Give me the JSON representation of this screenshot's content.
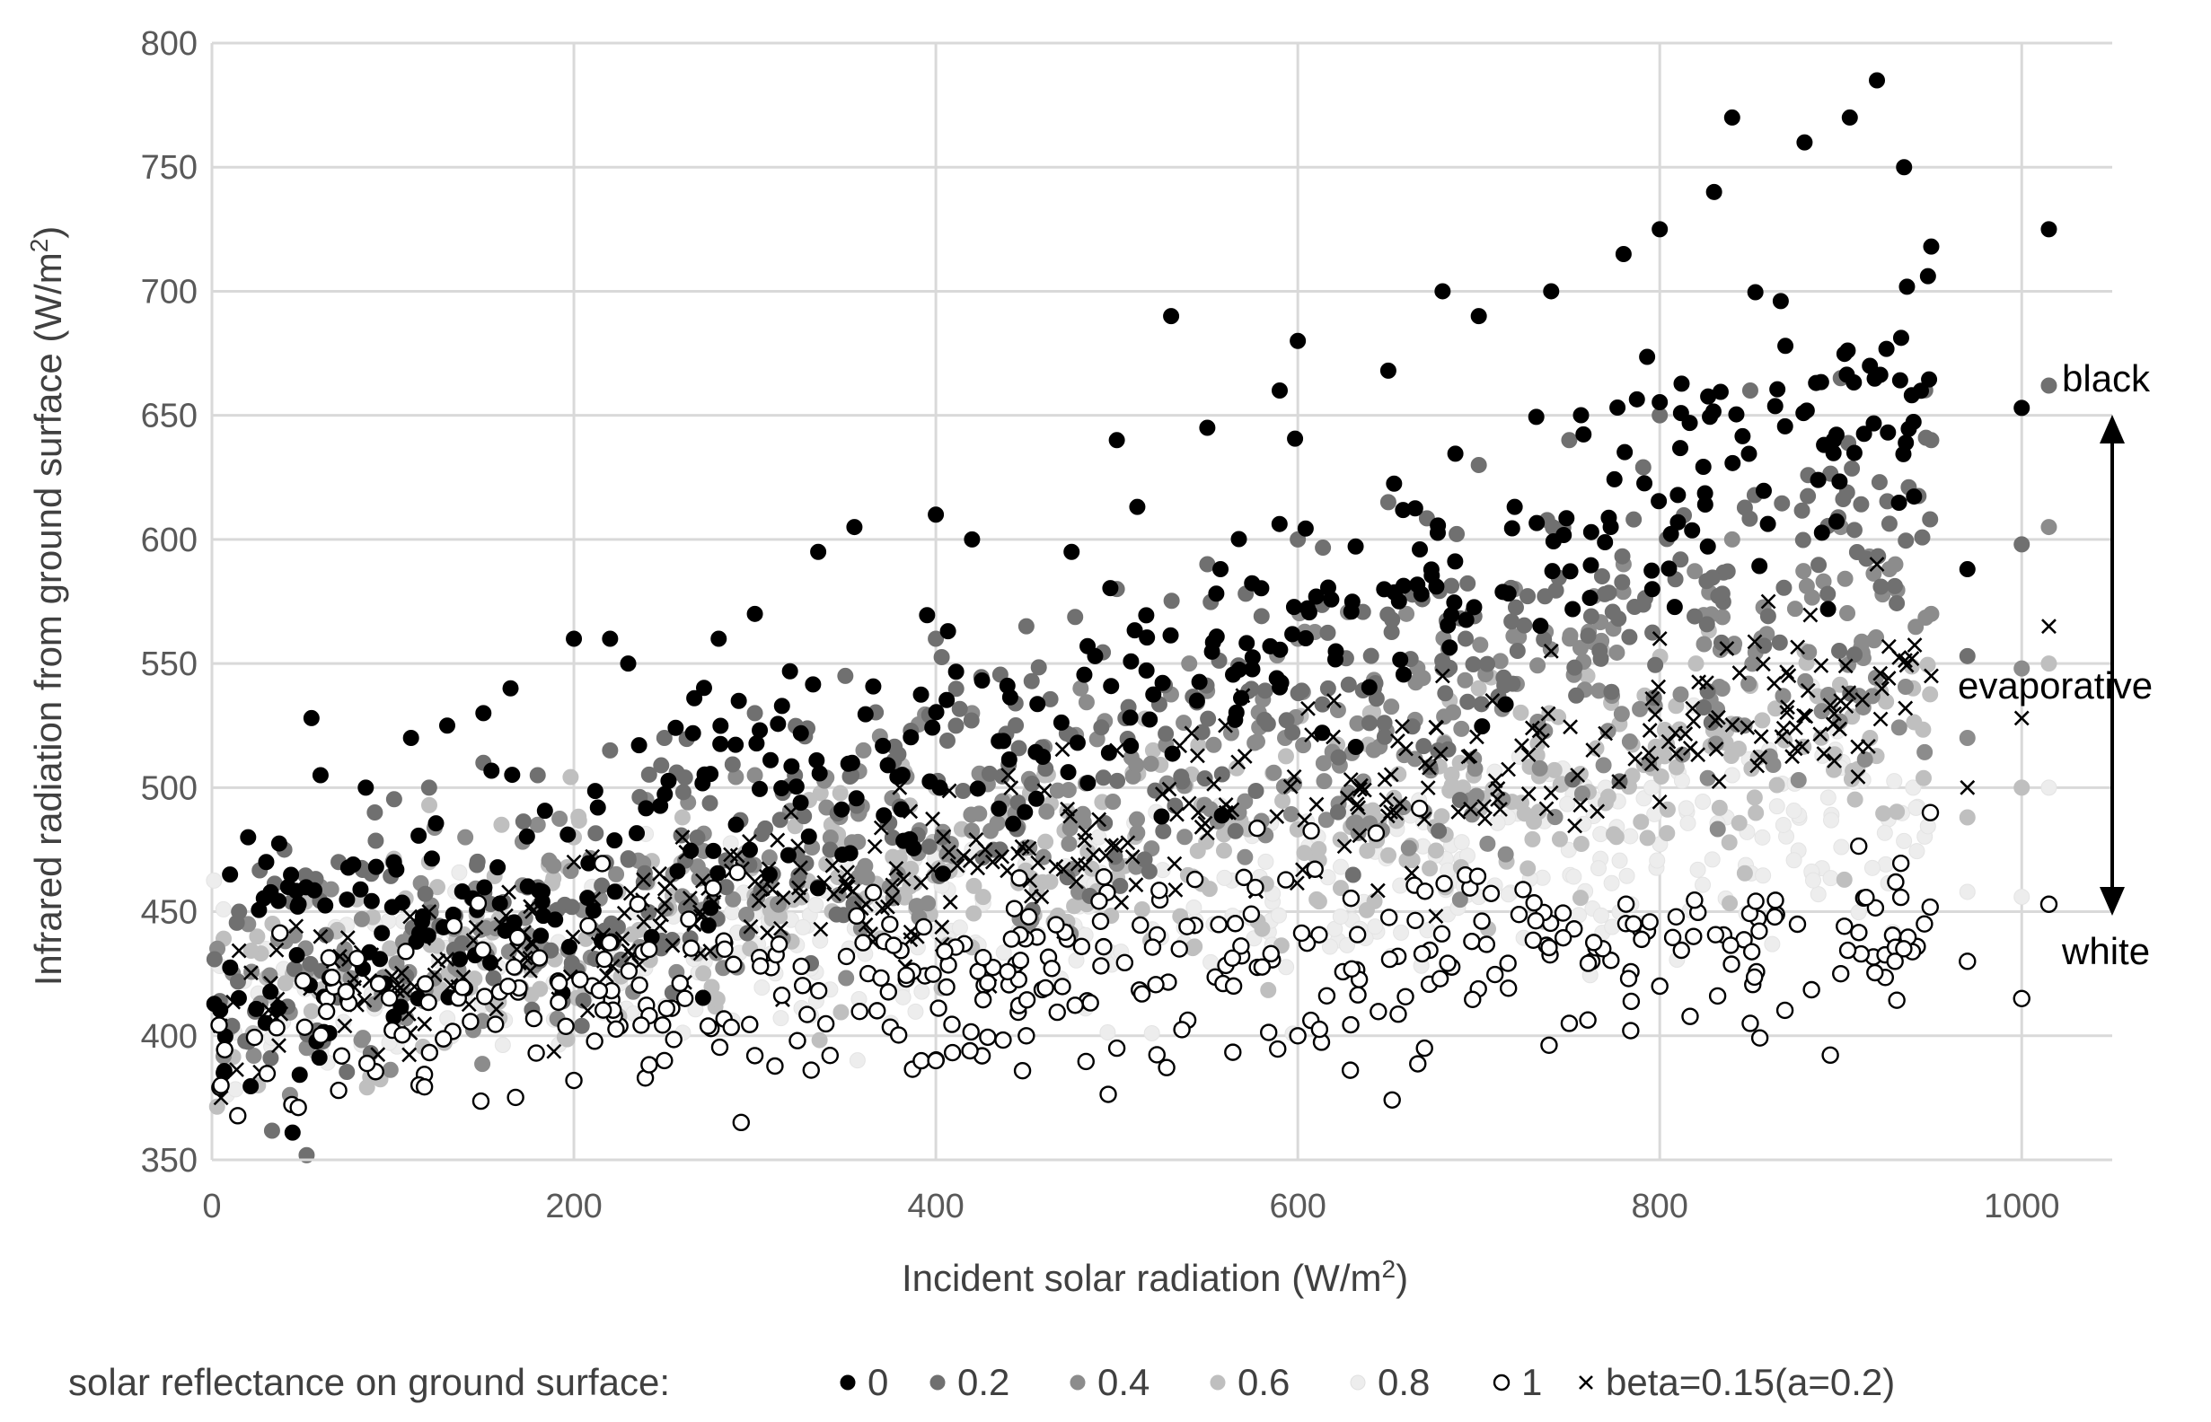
{
  "chart_data": {
    "type": "scatter",
    "title": "",
    "xlabel": "Incident solar radiation (W/m",
    "xlabel_sup": "2",
    "xlabel_end": ")",
    "ylabel": "Infrared radiation from ground surface (W/m",
    "ylabel_sup": "2",
    "ylabel_end": ")",
    "xlim": [
      0,
      1050
    ],
    "ylim": [
      350,
      800
    ],
    "x_ticks": [
      0,
      200,
      400,
      600,
      800,
      1000
    ],
    "y_ticks": [
      350,
      400,
      450,
      500,
      550,
      600,
      650,
      700,
      750,
      800
    ],
    "grid": true,
    "legend_position": "bottom",
    "legend_title": "solar reflectance on ground surface:",
    "annotations": [
      {
        "text": "black",
        "x": 1038,
        "y": 662
      },
      {
        "text": "evaporative",
        "x": 1038,
        "y": 538
      },
      {
        "text": "white",
        "x": 1038,
        "y": 437
      }
    ],
    "arrow": {
      "x": 1050,
      "y_top": 650,
      "y_bottom": 450
    },
    "series": [
      {
        "name": "0",
        "marker": "filled",
        "color": "#000000",
        "approx_trend": {
          "base_at_0": 418,
          "slope_per_1000": 245,
          "spread": 28
        },
        "points": [
          [
            10,
            465
          ],
          [
            20,
            480
          ],
          [
            30,
            470
          ],
          [
            55,
            528
          ],
          [
            60,
            505
          ],
          [
            85,
            500
          ],
          [
            110,
            520
          ],
          [
            130,
            525
          ],
          [
            150,
            530
          ],
          [
            165,
            540
          ],
          [
            200,
            560
          ],
          [
            220,
            560
          ],
          [
            230,
            550
          ],
          [
            280,
            560
          ],
          [
            300,
            570
          ],
          [
            335,
            595
          ],
          [
            355,
            605
          ],
          [
            400,
            610
          ],
          [
            420,
            600
          ],
          [
            475,
            595
          ],
          [
            500,
            640
          ],
          [
            530,
            690
          ],
          [
            550,
            645
          ],
          [
            590,
            660
          ],
          [
            600,
            680
          ],
          [
            650,
            668
          ],
          [
            680,
            700
          ],
          [
            700,
            690
          ],
          [
            740,
            700
          ],
          [
            780,
            715
          ],
          [
            800,
            725
          ],
          [
            830,
            740
          ],
          [
            840,
            770
          ],
          [
            880,
            760
          ],
          [
            905,
            770
          ],
          [
            920,
            785
          ],
          [
            935,
            750
          ],
          [
            950,
            718
          ],
          [
            1000,
            653
          ],
          [
            1015,
            725
          ],
          [
            970,
            588
          ]
        ]
      },
      {
        "name": "0.2",
        "marker": "filled",
        "color": "#707070",
        "approx_trend": {
          "base_at_0": 415,
          "slope_per_1000": 200,
          "spread": 26
        },
        "points": [
          [
            15,
            450
          ],
          [
            40,
            475
          ],
          [
            70,
            470
          ],
          [
            90,
            490
          ],
          [
            120,
            500
          ],
          [
            150,
            510
          ],
          [
            180,
            505
          ],
          [
            220,
            515
          ],
          [
            250,
            520
          ],
          [
            300,
            530
          ],
          [
            350,
            545
          ],
          [
            400,
            560
          ],
          [
            450,
            565
          ],
          [
            500,
            580
          ],
          [
            550,
            590
          ],
          [
            600,
            600
          ],
          [
            650,
            615
          ],
          [
            700,
            630
          ],
          [
            750,
            640
          ],
          [
            800,
            650
          ],
          [
            850,
            660
          ],
          [
            900,
            665
          ],
          [
            950,
            640
          ],
          [
            970,
            553
          ],
          [
            1000,
            598
          ],
          [
            1015,
            662
          ]
        ]
      },
      {
        "name": "0.4",
        "marker": "filled",
        "color": "#8c8c8c",
        "approx_trend": {
          "base_at_0": 413,
          "slope_per_1000": 160,
          "spread": 24
        },
        "points": [
          [
            20,
            445
          ],
          [
            60,
            460
          ],
          [
            100,
            470
          ],
          [
            140,
            480
          ],
          [
            180,
            485
          ],
          [
            240,
            495
          ],
          [
            300,
            505
          ],
          [
            360,
            515
          ],
          [
            420,
            530
          ],
          [
            480,
            540
          ],
          [
            540,
            550
          ],
          [
            600,
            560
          ],
          [
            660,
            570
          ],
          [
            720,
            580
          ],
          [
            780,
            590
          ],
          [
            840,
            600
          ],
          [
            900,
            605
          ],
          [
            950,
            570
          ],
          [
            970,
            520
          ],
          [
            1000,
            548
          ],
          [
            1015,
            605
          ]
        ]
      },
      {
        "name": "0.6",
        "marker": "filled",
        "color": "#bfbfbf",
        "approx_trend": {
          "base_at_0": 411,
          "slope_per_1000": 120,
          "spread": 22
        },
        "points": [
          [
            25,
            440
          ],
          [
            80,
            455
          ],
          [
            120,
            470
          ],
          [
            160,
            485
          ],
          [
            200,
            480
          ],
          [
            260,
            488
          ],
          [
            330,
            495
          ],
          [
            400,
            500
          ],
          [
            460,
            505
          ],
          [
            520,
            515
          ],
          [
            580,
            525
          ],
          [
            640,
            530
          ],
          [
            700,
            540
          ],
          [
            760,
            545
          ],
          [
            820,
            550
          ],
          [
            880,
            555
          ],
          [
            940,
            540
          ],
          [
            970,
            488
          ],
          [
            1000,
            500
          ],
          [
            1015,
            550
          ]
        ]
      },
      {
        "name": "0.8",
        "marker": "filled",
        "color": "#ededed",
        "approx_trend": {
          "base_at_0": 408,
          "slope_per_1000": 85,
          "spread": 20
        },
        "points": [
          [
            30,
            435
          ],
          [
            90,
            445
          ],
          [
            150,
            455
          ],
          [
            210,
            460
          ],
          [
            280,
            465
          ],
          [
            350,
            470
          ],
          [
            420,
            475
          ],
          [
            490,
            480
          ],
          [
            560,
            485
          ],
          [
            630,
            490
          ],
          [
            700,
            495
          ],
          [
            770,
            500
          ],
          [
            840,
            505
          ],
          [
            900,
            508
          ],
          [
            940,
            500
          ],
          [
            970,
            458
          ],
          [
            1000,
            456
          ],
          [
            1015,
            500
          ]
        ]
      },
      {
        "name": "1",
        "marker": "open",
        "color": "#000000",
        "approx_trend": {
          "base_at_0": 405,
          "slope_per_1000": 45,
          "spread": 20
        },
        "points": [
          [
            5,
            380
          ],
          [
            70,
            378
          ],
          [
            200,
            382
          ],
          [
            250,
            390
          ],
          [
            300,
            392
          ],
          [
            400,
            390
          ],
          [
            450,
            400
          ],
          [
            500,
            395
          ],
          [
            600,
            400
          ],
          [
            670,
            395
          ],
          [
            750,
            405
          ],
          [
            800,
            420
          ],
          [
            850,
            405
          ],
          [
            900,
            425
          ],
          [
            930,
            430
          ],
          [
            970,
            430
          ],
          [
            1000,
            415
          ],
          [
            1015,
            453
          ]
        ]
      },
      {
        "name": "beta=0.15(a=0.2)",
        "marker": "x",
        "color": "#000000",
        "approx_trend": {
          "base_at_0": 410,
          "slope_per_1000": 135,
          "spread": 16
        },
        "points": [
          [
            5,
            375
          ],
          [
            60,
            440
          ],
          [
            120,
            450
          ],
          [
            200,
            470
          ],
          [
            260,
            480
          ],
          [
            320,
            490
          ],
          [
            380,
            500
          ],
          [
            440,
            505
          ],
          [
            500,
            515
          ],
          [
            560,
            525
          ],
          [
            620,
            535
          ],
          [
            680,
            545
          ],
          [
            740,
            555
          ],
          [
            800,
            560
          ],
          [
            860,
            575
          ],
          [
            920,
            590
          ],
          [
            950,
            545
          ],
          [
            970,
            500
          ],
          [
            1000,
            528
          ],
          [
            1015,
            565
          ]
        ]
      }
    ]
  }
}
